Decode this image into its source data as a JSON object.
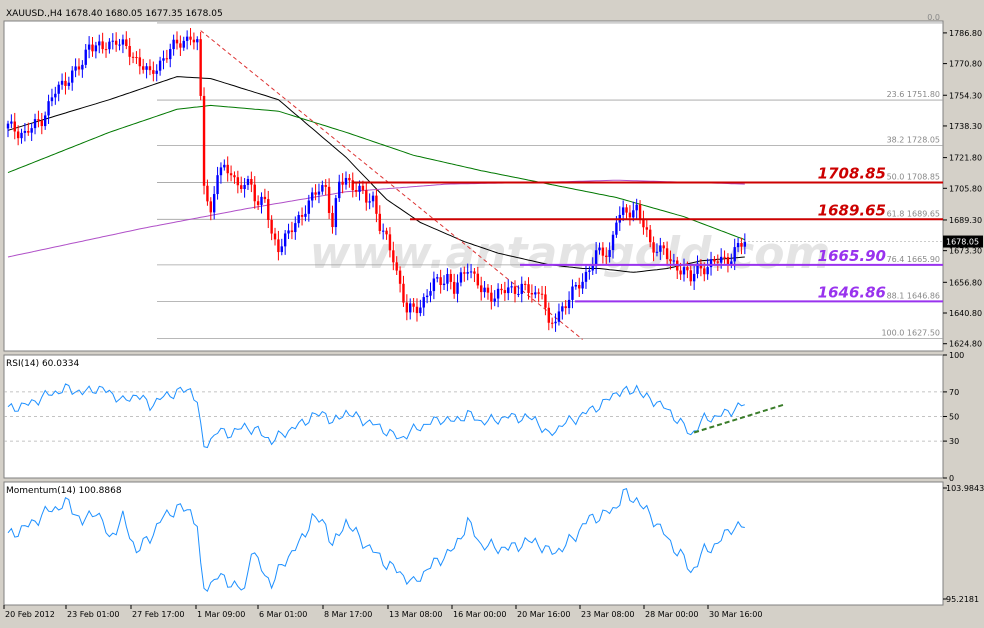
{
  "chart_data": [
    {
      "type": "candlestick",
      "panel": "price",
      "title": "XAUUSD.,H4  1678.40 1680.05 1677.35 1678.05",
      "watermark": "www.antamgold.com",
      "current_price": 1678.05,
      "ylim": [
        1621.0,
        1793.0
      ],
      "y_ticks": [
        "1786.80",
        "1770.80",
        "1754.30",
        "1738.30",
        "1721.80",
        "1705.80",
        "1689.30",
        "1673.30",
        "1656.80",
        "1640.80",
        "1624.80"
      ],
      "x_tick_labels": [
        "20 Feb 2012",
        "23 Feb 01:00",
        "27 Feb 17:00",
        "1 Mar 09:00",
        "6 Mar 01:00",
        "8 Mar 17:00",
        "13 Mar 08:00",
        "16 Mar 00:00",
        "20 Mar 16:00",
        "23 Mar 08:00",
        "28 Mar 00:00",
        "30 Mar 16:00"
      ],
      "close_path": [
        [
          0,
          1738
        ],
        [
          5,
          1734
        ],
        [
          10,
          1742
        ],
        [
          14,
          1756
        ],
        [
          18,
          1764
        ],
        [
          22,
          1770
        ],
        [
          24,
          1782
        ],
        [
          28,
          1778
        ],
        [
          32,
          1784
        ],
        [
          36,
          1776
        ],
        [
          40,
          1770
        ],
        [
          42,
          1764
        ],
        [
          46,
          1774
        ],
        [
          50,
          1781
        ],
        [
          54,
          1785
        ],
        [
          56,
          1780
        ],
        [
          57,
          1752
        ],
        [
          58,
          1710
        ],
        [
          60,
          1692
        ],
        [
          62,
          1714
        ],
        [
          66,
          1716
        ],
        [
          68,
          1706
        ],
        [
          72,
          1708
        ],
        [
          74,
          1698
        ],
        [
          76,
          1700
        ],
        [
          78,
          1680
        ],
        [
          80,
          1676
        ],
        [
          84,
          1684
        ],
        [
          88,
          1696
        ],
        [
          92,
          1705
        ],
        [
          94,
          1707
        ],
        [
          96,
          1686
        ],
        [
          98,
          1708
        ],
        [
          100,
          1711
        ],
        [
          104,
          1704
        ],
        [
          106,
          1700
        ],
        [
          108,
          1701
        ],
        [
          110,
          1686
        ],
        [
          114,
          1670
        ],
        [
          118,
          1641
        ],
        [
          122,
          1645
        ],
        [
          126,
          1656
        ],
        [
          130,
          1660
        ],
        [
          132,
          1652
        ],
        [
          136,
          1666
        ],
        [
          140,
          1652
        ],
        [
          144,
          1650
        ],
        [
          148,
          1653
        ],
        [
          152,
          1654
        ],
        [
          156,
          1650
        ],
        [
          158,
          1654
        ],
        [
          160,
          1632
        ],
        [
          164,
          1644
        ],
        [
          170,
          1658
        ],
        [
          174,
          1671
        ],
        [
          178,
          1673
        ],
        [
          180,
          1690
        ],
        [
          184,
          1694
        ],
        [
          186,
          1696
        ],
        [
          188,
          1686
        ],
        [
          190,
          1676
        ],
        [
          194,
          1674
        ],
        [
          196,
          1666
        ],
        [
          200,
          1664
        ],
        [
          202,
          1658
        ],
        [
          204,
          1664
        ],
        [
          208,
          1666
        ],
        [
          210,
          1668
        ],
        [
          214,
          1670
        ],
        [
          216,
          1675
        ],
        [
          218,
          1678
        ]
      ],
      "moving_averages": [
        {
          "color": "#000000",
          "values": [
            [
              0,
              1736
            ],
            [
              30,
              1752
            ],
            [
              50,
              1764
            ],
            [
              60,
              1763
            ],
            [
              80,
              1752
            ],
            [
              100,
              1722
            ],
            [
              112,
              1700
            ],
            [
              122,
              1688
            ],
            [
              135,
              1678
            ],
            [
              145,
              1672
            ],
            [
              160,
              1666
            ],
            [
              170,
              1664
            ],
            [
              175,
              1664
            ],
            [
              185,
              1662
            ],
            [
              195,
              1664
            ],
            [
              205,
              1668
            ],
            [
              218,
              1670
            ]
          ]
        },
        {
          "color": "#007800",
          "values": [
            [
              0,
              1714
            ],
            [
              30,
              1735
            ],
            [
              50,
              1747
            ],
            [
              60,
              1749
            ],
            [
              80,
              1746
            ],
            [
              100,
              1735
            ],
            [
              120,
              1723
            ],
            [
              140,
              1715
            ],
            [
              160,
              1708
            ],
            [
              180,
              1701
            ],
            [
              200,
              1691
            ],
            [
              218,
              1679
            ]
          ]
        },
        {
          "color": "#b050c8",
          "values": [
            [
              0,
              1670
            ],
            [
              40,
              1685
            ],
            [
              70,
              1695
            ],
            [
              100,
              1704
            ],
            [
              130,
              1708
            ],
            [
              160,
              1709
            ],
            [
              180,
              1710
            ],
            [
              200,
              1709
            ],
            [
              218,
              1708
            ]
          ]
        }
      ],
      "fibonacci": {
        "color": "#a0a0a0",
        "levels": [
          {
            "ratio": "0.0",
            "price": 1792.0,
            "label": "0.0"
          },
          {
            "ratio": "23.6",
            "price": 1751.8,
            "label": "23.6  1751.80"
          },
          {
            "ratio": "38.2",
            "price": 1728.05,
            "label": "38.2  1728.05"
          },
          {
            "ratio": "50.0",
            "price": 1708.85,
            "label": "50.0  1708.85"
          },
          {
            "ratio": "61.8",
            "price": 1689.65,
            "label": "61.8  1689.65"
          },
          {
            "ratio": "76.4",
            "price": 1665.9,
            "label": "76.4  1665.90"
          },
          {
            "ratio": "88.1",
            "price": 1646.86,
            "label": "88.1  1646.86"
          },
          {
            "ratio": "100.0",
            "price": 1627.5,
            "label": "100.0  1627.50"
          }
        ]
      },
      "level_lines": [
        {
          "price": 1708.85,
          "label": "1708.85",
          "color": "#cc0000"
        },
        {
          "price": 1689.65,
          "label": "1689.65",
          "color": "#cc0000"
        },
        {
          "price": 1665.9,
          "label": "1665.90",
          "color": "#9933ee"
        },
        {
          "price": 1646.86,
          "label": "1646.86",
          "color": "#9933ee"
        }
      ],
      "trend_lines": [
        {
          "style": "dashed",
          "color": "#dd3333",
          "from": [
            57,
            1788
          ],
          "to": [
            170,
            1627
          ]
        }
      ]
    },
    {
      "type": "line",
      "panel": "rsi",
      "title": "RSI(14) 60.0334",
      "ylim": [
        0,
        100
      ],
      "y_ticks": [
        "100",
        "70",
        "50",
        "30",
        "0"
      ],
      "levels": [
        70,
        50,
        30
      ],
      "values": [
        [
          0,
          56
        ],
        [
          6,
          60
        ],
        [
          12,
          68
        ],
        [
          18,
          73
        ],
        [
          22,
          69
        ],
        [
          26,
          73
        ],
        [
          30,
          70
        ],
        [
          34,
          62
        ],
        [
          38,
          68
        ],
        [
          42,
          59
        ],
        [
          46,
          66
        ],
        [
          50,
          70
        ],
        [
          54,
          72
        ],
        [
          56,
          62
        ],
        [
          57,
          40
        ],
        [
          58,
          25
        ],
        [
          62,
          38
        ],
        [
          66,
          36
        ],
        [
          70,
          42
        ],
        [
          74,
          38
        ],
        [
          78,
          30
        ],
        [
          82,
          37
        ],
        [
          86,
          43
        ],
        [
          90,
          50
        ],
        [
          94,
          53
        ],
        [
          96,
          44
        ],
        [
          100,
          54
        ],
        [
          104,
          48
        ],
        [
          108,
          44
        ],
        [
          112,
          38
        ],
        [
          116,
          32
        ],
        [
          120,
          39
        ],
        [
          124,
          44
        ],
        [
          128,
          48
        ],
        [
          132,
          46
        ],
        [
          136,
          52
        ],
        [
          140,
          46
        ],
        [
          144,
          47
        ],
        [
          148,
          50
        ],
        [
          152,
          49
        ],
        [
          156,
          48
        ],
        [
          160,
          34
        ],
        [
          164,
          44
        ],
        [
          168,
          48
        ],
        [
          172,
          55
        ],
        [
          176,
          60
        ],
        [
          180,
          70
        ],
        [
          184,
          70
        ],
        [
          186,
          74
        ],
        [
          188,
          66
        ],
        [
          192,
          62
        ],
        [
          196,
          53
        ],
        [
          200,
          42
        ],
        [
          202,
          35
        ],
        [
          206,
          48
        ],
        [
          210,
          50
        ],
        [
          214,
          55
        ],
        [
          218,
          60
        ]
      ],
      "trend_lines": [
        {
          "style": "dashed",
          "color": "#3a7d2a",
          "from": [
            203,
            37
          ],
          "to": [
            230,
            60
          ]
        }
      ]
    },
    {
      "type": "line",
      "panel": "momentum",
      "title": "Momentum(14) 100.8868",
      "y_ticks": [
        "103.9843",
        "95.2181"
      ],
      "ylim": [
        95.2181,
        103.9843
      ],
      "values": [
        [
          0,
          100.2
        ],
        [
          6,
          101.0
        ],
        [
          12,
          102.2
        ],
        [
          18,
          102.8
        ],
        [
          22,
          101.2
        ],
        [
          26,
          102.3
        ],
        [
          30,
          100.0
        ],
        [
          34,
          101.6
        ],
        [
          38,
          99.0
        ],
        [
          42,
          100.1
        ],
        [
          46,
          101.7
        ],
        [
          50,
          102.4
        ],
        [
          54,
          102.2
        ],
        [
          56,
          101.0
        ],
        [
          57,
          97.5
        ],
        [
          58,
          96.0
        ],
        [
          62,
          97.0
        ],
        [
          66,
          96.5
        ],
        [
          70,
          95.8
        ],
        [
          72,
          99.3
        ],
        [
          74,
          98.0
        ],
        [
          78,
          96.4
        ],
        [
          82,
          98.3
        ],
        [
          86,
          99.5
        ],
        [
          90,
          101.6
        ],
        [
          94,
          101.2
        ],
        [
          96,
          99.3
        ],
        [
          100,
          101.4
        ],
        [
          104,
          100.0
        ],
        [
          108,
          99.0
        ],
        [
          112,
          98.0
        ],
        [
          116,
          97.3
        ],
        [
          120,
          96.4
        ],
        [
          124,
          97.6
        ],
        [
          128,
          98.4
        ],
        [
          132,
          99.2
        ],
        [
          136,
          101.3
        ],
        [
          140,
          99.5
        ],
        [
          144,
          99.3
        ],
        [
          148,
          99.2
        ],
        [
          152,
          99.6
        ],
        [
          156,
          99.8
        ],
        [
          160,
          98.9
        ],
        [
          164,
          99.2
        ],
        [
          168,
          100.3
        ],
        [
          172,
          101.6
        ],
        [
          176,
          101.8
        ],
        [
          180,
          102.5
        ],
        [
          182,
          103.6
        ],
        [
          184,
          103.2
        ],
        [
          186,
          103.1
        ],
        [
          188,
          102.4
        ],
        [
          192,
          101.2
        ],
        [
          196,
          99.6
        ],
        [
          200,
          98.4
        ],
        [
          202,
          97.3
        ],
        [
          206,
          99.0
        ],
        [
          210,
          99.6
        ],
        [
          214,
          100.9
        ],
        [
          218,
          100.9
        ]
      ]
    }
  ]
}
